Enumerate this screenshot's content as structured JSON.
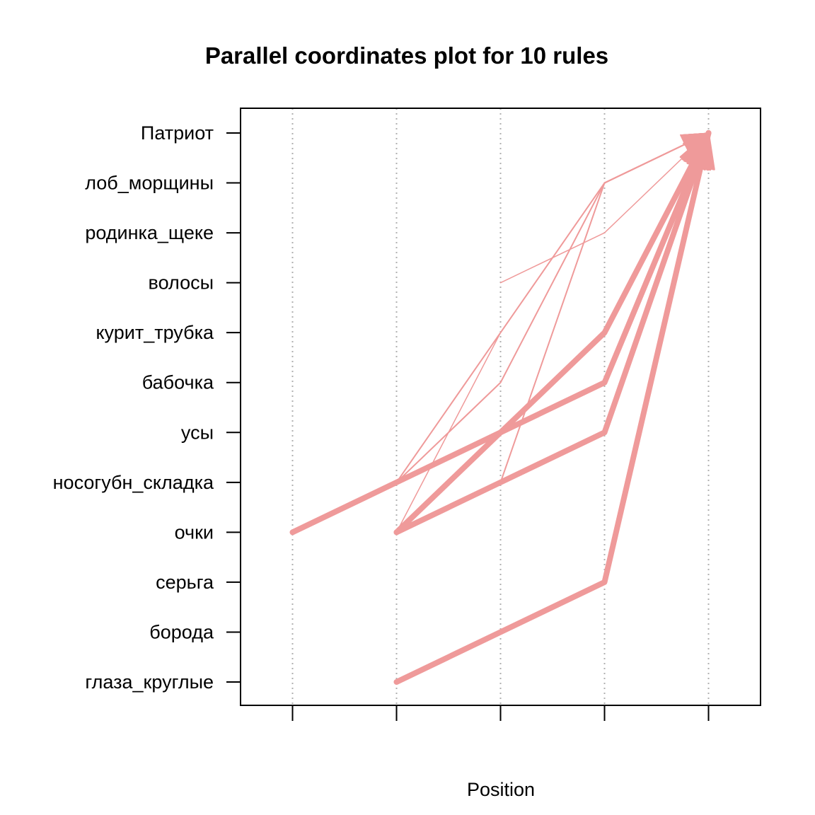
{
  "chart_data": {
    "type": "line",
    "title": "Parallel coordinates plot for 10 rules",
    "xlabel": "Position",
    "ylabel": "",
    "x_positions": [
      1,
      2,
      3,
      4,
      5
    ],
    "xlim": [
      0.5,
      5.5
    ],
    "items": [
      "глаза_круглые",
      "борода",
      "серьга",
      "очки",
      "носогубн_складка",
      "усы",
      "бабочка",
      "курит_трубка",
      "волосы",
      "родинка_щеке",
      "лоб_морщины",
      "Патриот"
    ],
    "grid": true,
    "line_color": "#ef9a9a",
    "rules": [
      {
        "path": [
          [
            1,
            "очки"
          ],
          [
            2,
            "носогубн_складка"
          ],
          [
            3,
            "усы"
          ],
          [
            4,
            "бабочка"
          ],
          [
            5,
            "Патриот"
          ]
        ],
        "weight": 8
      },
      {
        "path": [
          [
            2,
            "очки"
          ],
          [
            3,
            "носогубн_складка"
          ],
          [
            4,
            "усы"
          ],
          [
            5,
            "Патриот"
          ]
        ],
        "weight": 8
      },
      {
        "path": [
          [
            2,
            "очки"
          ],
          [
            3,
            "усы"
          ],
          [
            4,
            "курит_трубка"
          ],
          [
            5,
            "Патриот"
          ]
        ],
        "weight": 8
      },
      {
        "path": [
          [
            2,
            "глаза_круглые"
          ],
          [
            4,
            "серьга"
          ],
          [
            5,
            "Патриот"
          ]
        ],
        "weight": 8
      },
      {
        "path": [
          [
            3,
            "носогубн_складка"
          ],
          [
            4,
            "лоб_морщины"
          ],
          [
            5,
            "Патриот"
          ]
        ],
        "weight": 2
      },
      {
        "path": [
          [
            2,
            "носогубн_складка"
          ],
          [
            3,
            "курит_трубка"
          ],
          [
            4,
            "лоб_морщины"
          ],
          [
            5,
            "Патриот"
          ]
        ],
        "weight": 2
      },
      {
        "path": [
          [
            2,
            "носогубн_складка"
          ],
          [
            3,
            "бабочка"
          ],
          [
            4,
            "лоб_морщины"
          ],
          [
            5,
            "Патриот"
          ]
        ],
        "weight": 2
      },
      {
        "path": [
          [
            2,
            "очки"
          ],
          [
            3,
            "курит_трубка"
          ],
          [
            4,
            "лоб_морщины"
          ],
          [
            5,
            "Патриот"
          ]
        ],
        "weight": 1.5
      },
      {
        "path": [
          [
            3,
            "волосы"
          ],
          [
            4,
            "родинка_щеке"
          ],
          [
            5,
            "Патриот"
          ]
        ],
        "weight": 1.5
      },
      {
        "path": [
          [
            4,
            "лоб_морщины"
          ],
          [
            5,
            "Патриот"
          ]
        ],
        "weight": 1.5
      }
    ]
  }
}
